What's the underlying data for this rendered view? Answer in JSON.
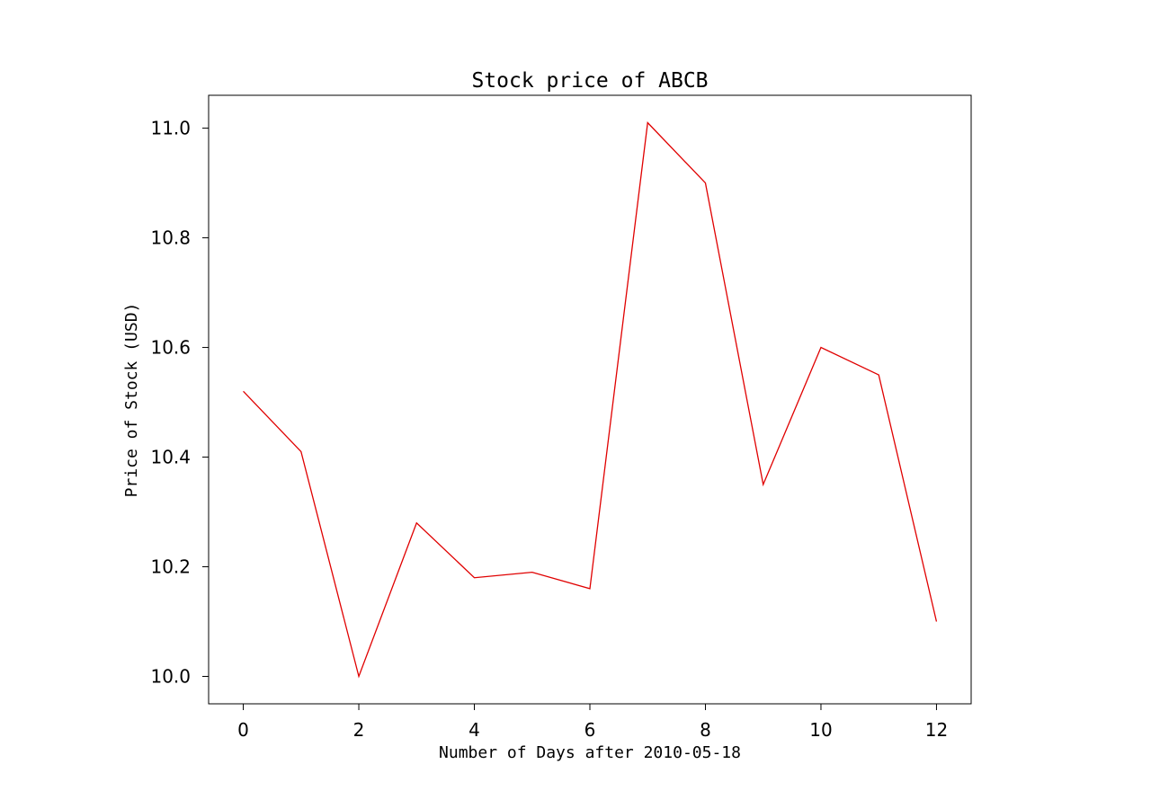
{
  "chart_data": {
    "type": "line",
    "title": "Stock price of ABCB",
    "xlabel": "Number of Days after 2010-05-18",
    "ylabel": "Price of Stock (USD)",
    "xlim": [
      -0.6,
      12.6
    ],
    "ylim": [
      9.95,
      11.06
    ],
    "xticks": [
      0,
      2,
      4,
      6,
      8,
      10,
      12
    ],
    "xtick_labels": [
      "0",
      "2",
      "4",
      "6",
      "8",
      "10",
      "12"
    ],
    "yticks": [
      10.0,
      10.2,
      10.4,
      10.6,
      10.8,
      11.0
    ],
    "ytick_labels": [
      "10.0",
      "10.2",
      "10.4",
      "10.6",
      "10.8",
      "11.0"
    ],
    "grid": false,
    "series": [
      {
        "color": "#e00000",
        "x": [
          0,
          1,
          2,
          3,
          4,
          5,
          6,
          7,
          8,
          9,
          10,
          11,
          12
        ],
        "y": [
          10.52,
          10.41,
          10.0,
          10.28,
          10.18,
          10.19,
          10.16,
          11.01,
          10.9,
          10.35,
          10.6,
          10.55,
          10.1
        ]
      }
    ]
  }
}
